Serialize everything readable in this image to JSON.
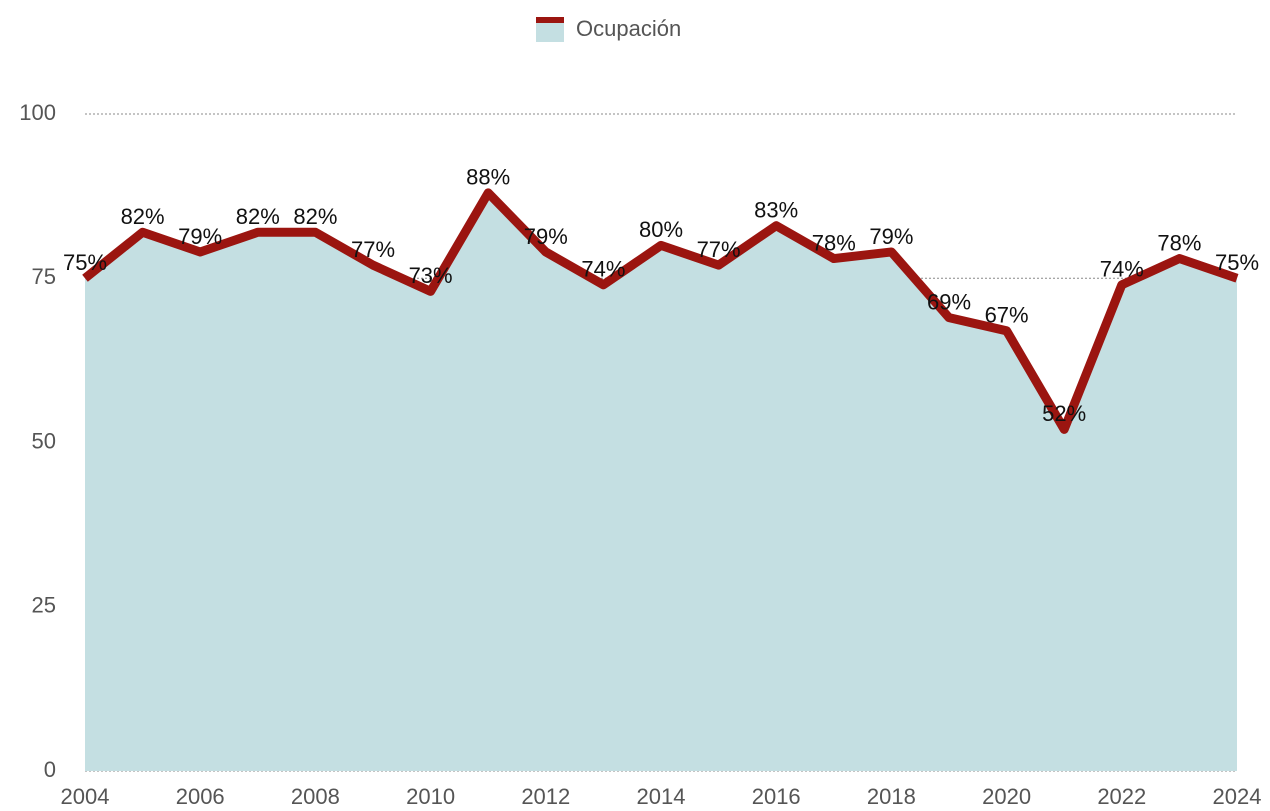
{
  "chart_data": {
    "type": "area",
    "x": [
      2004,
      2005,
      2006,
      2007,
      2008,
      2009,
      2010,
      2011,
      2012,
      2013,
      2014,
      2015,
      2016,
      2017,
      2018,
      2019,
      2020,
      2021,
      2022,
      2023,
      2024
    ],
    "series": [
      {
        "name": "Ocupación",
        "color": "#9b1510",
        "fill": "#c4dfe2",
        "values": [
          75,
          82,
          79,
          82,
          82,
          77,
          73,
          88,
          79,
          74,
          80,
          77,
          83,
          78,
          79,
          69,
          67,
          52,
          74,
          78,
          75
        ],
        "value_labels": [
          "75%",
          "82%",
          "79%",
          "82%",
          "82%",
          "77%",
          "73%",
          "88%",
          "79%",
          "74%",
          "80%",
          "77%",
          "83%",
          "78%",
          "79%",
          "69%",
          "67%",
          "52%",
          "74%",
          "78%",
          "75%"
        ]
      }
    ],
    "xlim": [
      2004,
      2024
    ],
    "xticks": [
      2004,
      2006,
      2008,
      2010,
      2012,
      2014,
      2016,
      2018,
      2020,
      2022,
      2024
    ],
    "ylim": [
      0,
      100
    ],
    "yticks": [
      0,
      25,
      50,
      75,
      100
    ],
    "grid": true,
    "legend": "top"
  }
}
